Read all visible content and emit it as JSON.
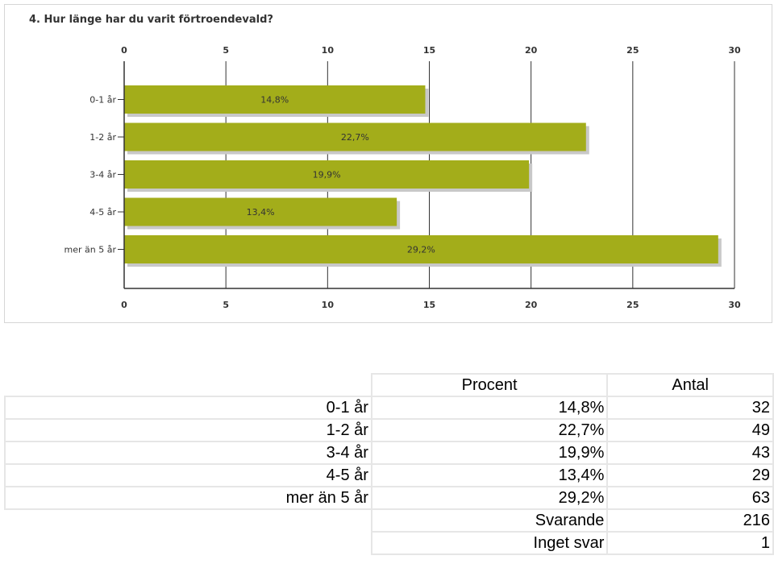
{
  "chart_data": {
    "type": "bar",
    "orientation": "horizontal",
    "title": "4. Hur länge har du varit förtroendevald?",
    "categories": [
      "0-1 år",
      "1-2 år",
      "3-4 år",
      "4-5 år",
      "mer än 5 år"
    ],
    "values": [
      14.8,
      22.7,
      19.9,
      13.4,
      29.2
    ],
    "data_labels": [
      "14,8%",
      "22,7%",
      "19,9%",
      "13,4%",
      "29,2%"
    ],
    "xlim": [
      0,
      30
    ],
    "xticks": [
      0,
      5,
      10,
      15,
      20,
      25,
      30
    ],
    "xtick_labels": [
      "0",
      "5",
      "10",
      "15",
      "20",
      "25",
      "30"
    ],
    "axis_labels_top_and_bottom": true,
    "grid": true,
    "bar_color": "#a3ad1a",
    "bar_shadow_color": "#c8c8c8"
  },
  "table": {
    "headers": [
      "",
      "Procent",
      "Antal"
    ],
    "rows": [
      {
        "label": "0-1 år",
        "procent": "14,8%",
        "antal": "32"
      },
      {
        "label": "1-2 år",
        "procent": "22,7%",
        "antal": "49"
      },
      {
        "label": "3-4 år",
        "procent": "19,9%",
        "antal": "43"
      },
      {
        "label": "4-5 år",
        "procent": "13,4%",
        "antal": "29"
      },
      {
        "label": "mer än 5 år",
        "procent": "29,2%",
        "antal": "63"
      }
    ],
    "footer": [
      {
        "label": "Svarande",
        "value": "216"
      },
      {
        "label": "Inget svar",
        "value": "1"
      }
    ]
  }
}
